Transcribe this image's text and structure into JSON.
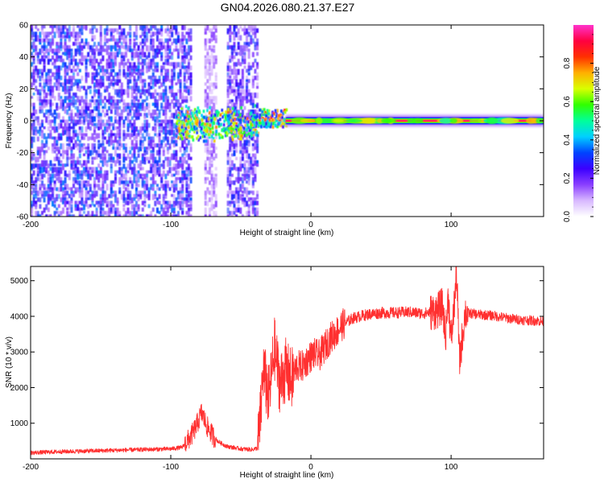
{
  "title": "GN04.2026.080.21.37.E27",
  "chart_data": [
    {
      "type": "heatmap",
      "title": "GN04.2026.080.21.37.E27",
      "xlabel": "Height of straight line (km)",
      "ylabel": "Frequency (Hz)",
      "xlim": [
        -200,
        166
      ],
      "ylim": [
        -60,
        60
      ],
      "xticks": [
        -200,
        -100,
        0,
        100
      ],
      "yticks": [
        -60,
        -40,
        -20,
        0,
        20,
        40,
        60
      ],
      "colorbar": {
        "label": "Normalized spectral amplitude",
        "range": [
          0,
          1
        ],
        "ticks": [
          0.0,
          0.2,
          0.4,
          0.6,
          0.8
        ],
        "tick_labels": [
          "0.0",
          "0.2",
          "0.4",
          "0.6",
          "0.8"
        ],
        "colors": [
          "#ffffff",
          "#d8b8ff",
          "#8a3fff",
          "#3b00ff",
          "#0044ff",
          "#00d0ff",
          "#00ff9a",
          "#30ff00",
          "#d8ff00",
          "#ffb000",
          "#ff3000",
          "#ff0040",
          "#ff33cc"
        ]
      },
      "regions": [
        {
          "name": "diffuse noise",
          "x": [
            -200,
            -85
          ],
          "freq": [
            -60,
            60
          ],
          "amplitude": 0.25
        },
        {
          "name": "diffuse noise",
          "x": [
            -76,
            -68
          ],
          "freq": [
            -60,
            60
          ],
          "amplitude": 0.12
        },
        {
          "name": "diffuse noise",
          "x": [
            -60,
            -38
          ],
          "freq": [
            -60,
            60
          ],
          "amplitude": 0.22
        },
        {
          "name": "scattered signal",
          "x": [
            -97,
            -38
          ],
          "freq": [
            -15,
            8
          ],
          "amplitude": 0.45
        },
        {
          "name": "emerging carrier",
          "x": [
            -38,
            -18
          ],
          "freq": [
            -3,
            8
          ],
          "amplitude": 0.55
        },
        {
          "name": "carrier line",
          "x": [
            -18,
            166
          ],
          "freq": [
            -1,
            1
          ],
          "amplitude": 0.95
        }
      ]
    },
    {
      "type": "line",
      "xlabel": "Height of straight line (km)",
      "ylabel": "SNR (10 * v/v)",
      "xlim": [
        -200,
        166
      ],
      "ylim": [
        0,
        5400
      ],
      "xticks": [
        -200,
        -100,
        0,
        100
      ],
      "yticks": [
        1000,
        2000,
        3000,
        4000,
        5000
      ],
      "color": "#ff3030",
      "series": [
        {
          "name": "SNR",
          "x": [
            -200,
            -180,
            -160,
            -140,
            -120,
            -100,
            -92,
            -86,
            -82,
            -78,
            -74,
            -70,
            -66,
            -60,
            -50,
            -42,
            -38,
            -36,
            -34,
            -30,
            -26,
            -22,
            -18,
            -14,
            -10,
            -6,
            -2,
            2,
            6,
            10,
            14,
            18,
            22,
            26,
            30,
            40,
            50,
            60,
            70,
            80,
            90,
            94,
            96,
            98,
            100,
            102,
            104,
            106,
            110,
            120,
            130,
            140,
            150,
            160,
            166
          ],
          "y": [
            170,
            200,
            220,
            240,
            260,
            280,
            320,
            600,
            900,
            1300,
            900,
            650,
            480,
            350,
            280,
            260,
            300,
            1200,
            2500,
            1700,
            3100,
            2100,
            2500,
            2200,
            2600,
            2600,
            2800,
            2950,
            2900,
            3150,
            3400,
            3550,
            3750,
            3850,
            3950,
            4050,
            4100,
            4100,
            4120,
            4080,
            4150,
            4300,
            3400,
            4600,
            3300,
            4200,
            5200,
            2700,
            4100,
            4050,
            4020,
            3950,
            3900,
            3880,
            3850
          ]
        }
      ]
    }
  ]
}
